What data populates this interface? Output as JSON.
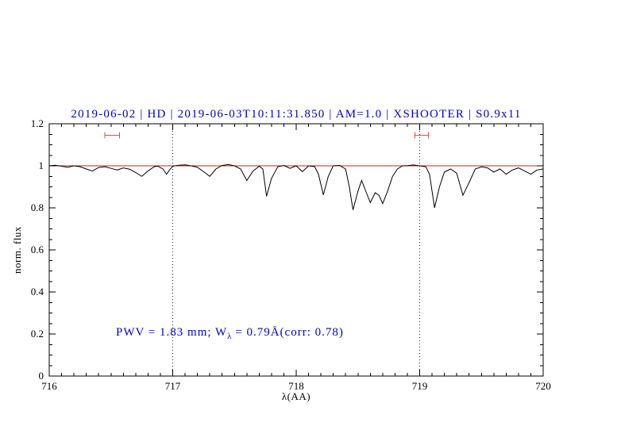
{
  "colors": {
    "title_text": "#0000cd",
    "annotation_text": "#0000cd",
    "spectrum": "#000000",
    "continuum": "#cc2222",
    "range_marker": "#cc5555",
    "frame": "#000000"
  },
  "chart_data": {
    "type": "line",
    "title": "2019-06-02 | HD | 2019-06-03T10:11:31.850 | AM=1.0 | XSHOOTER | S0.9x11",
    "xlabel": "λ(AA)",
    "ylabel": "norm. flux",
    "xlim": [
      716,
      720
    ],
    "ylim": [
      0,
      1.2
    ],
    "xticks": [
      716,
      717,
      718,
      719,
      720
    ],
    "xtick_labels": [
      "716",
      "717",
      "718",
      "719",
      "720"
    ],
    "yticks": [
      0,
      0.2,
      0.4,
      0.6,
      0.8,
      1,
      1.2
    ],
    "ytick_labels": [
      "0",
      "0.2",
      "0.4",
      "0.6",
      "0.8",
      "1",
      "1.2"
    ],
    "minor_x_step": 0.1,
    "minor_y_step": 0.05,
    "grid": false,
    "legend": "none",
    "dotted_vlines": [
      717,
      719
    ],
    "continuum_y": 1.0,
    "range_markers": [
      {
        "x1": 716.45,
        "x2": 716.57,
        "y": 1.145
      },
      {
        "x1": 718.96,
        "x2": 719.07,
        "y": 1.145
      }
    ],
    "annotation": {
      "prefix": "PWV = 1.83 mm; W",
      "sub": "λ",
      "suffix": " = 0.79Å(corr: 0.78)",
      "x": 716.55,
      "y": 0.2
    },
    "series": [
      {
        "name": "telluric spectrum",
        "points": [
          [
            716.0,
            1.0
          ],
          [
            716.05,
            1.003
          ],
          [
            716.1,
            0.998
          ],
          [
            716.15,
            0.993
          ],
          [
            716.2,
            1.0
          ],
          [
            716.25,
            0.996
          ],
          [
            716.3,
            0.985
          ],
          [
            716.35,
            0.975
          ],
          [
            716.4,
            0.992
          ],
          [
            716.45,
            0.996
          ],
          [
            716.5,
            0.988
          ],
          [
            716.55,
            0.98
          ],
          [
            716.6,
            0.99
          ],
          [
            716.65,
            0.984
          ],
          [
            716.7,
            0.968
          ],
          [
            716.75,
            0.95
          ],
          [
            716.8,
            0.976
          ],
          [
            716.85,
            0.996
          ],
          [
            716.88,
            0.998
          ],
          [
            716.92,
            0.985
          ],
          [
            716.95,
            0.96
          ],
          [
            716.98,
            0.985
          ],
          [
            717.0,
            0.998
          ],
          [
            717.05,
            1.003
          ],
          [
            717.1,
            1.005
          ],
          [
            717.15,
            1.0
          ],
          [
            717.2,
            0.993
          ],
          [
            717.25,
            0.972
          ],
          [
            717.3,
            0.95
          ],
          [
            717.35,
            0.985
          ],
          [
            717.4,
            1.002
          ],
          [
            717.45,
            1.006
          ],
          [
            717.5,
            1.0
          ],
          [
            717.55,
            0.985
          ],
          [
            717.6,
            0.93
          ],
          [
            717.65,
            0.975
          ],
          [
            717.7,
            0.998
          ],
          [
            717.73,
            0.985
          ],
          [
            717.76,
            0.855
          ],
          [
            717.8,
            0.94
          ],
          [
            717.85,
            0.995
          ],
          [
            717.9,
            1.002
          ],
          [
            717.95,
            0.988
          ],
          [
            718.0,
            1.0
          ],
          [
            718.05,
            0.972
          ],
          [
            718.1,
            1.0
          ],
          [
            718.15,
            0.996
          ],
          [
            718.18,
            0.96
          ],
          [
            718.22,
            0.862
          ],
          [
            718.26,
            0.95
          ],
          [
            718.3,
            1.0
          ],
          [
            718.35,
            1.002
          ],
          [
            718.4,
            0.985
          ],
          [
            718.43,
            0.9
          ],
          [
            718.46,
            0.79
          ],
          [
            718.5,
            0.88
          ],
          [
            718.53,
            0.93
          ],
          [
            718.57,
            0.87
          ],
          [
            718.6,
            0.825
          ],
          [
            718.64,
            0.872
          ],
          [
            718.67,
            0.86
          ],
          [
            718.7,
            0.82
          ],
          [
            718.74,
            0.88
          ],
          [
            718.78,
            0.95
          ],
          [
            718.82,
            0.985
          ],
          [
            718.86,
            1.0
          ],
          [
            718.9,
            1.001
          ],
          [
            718.95,
            1.004
          ],
          [
            719.0,
            1.0
          ],
          [
            719.05,
            0.995
          ],
          [
            719.08,
            0.96
          ],
          [
            719.12,
            0.8
          ],
          [
            719.16,
            0.9
          ],
          [
            719.2,
            0.97
          ],
          [
            719.25,
            0.985
          ],
          [
            719.3,
            0.965
          ],
          [
            719.35,
            0.86
          ],
          [
            719.4,
            0.92
          ],
          [
            719.45,
            0.985
          ],
          [
            719.5,
            0.995
          ],
          [
            719.55,
            0.99
          ],
          [
            719.6,
            0.97
          ],
          [
            719.65,
            0.985
          ],
          [
            719.7,
            0.96
          ],
          [
            719.75,
            0.98
          ],
          [
            719.8,
            0.99
          ],
          [
            719.85,
            0.975
          ],
          [
            719.9,
            0.96
          ],
          [
            719.95,
            0.98
          ],
          [
            720.0,
            0.985
          ]
        ]
      }
    ]
  }
}
